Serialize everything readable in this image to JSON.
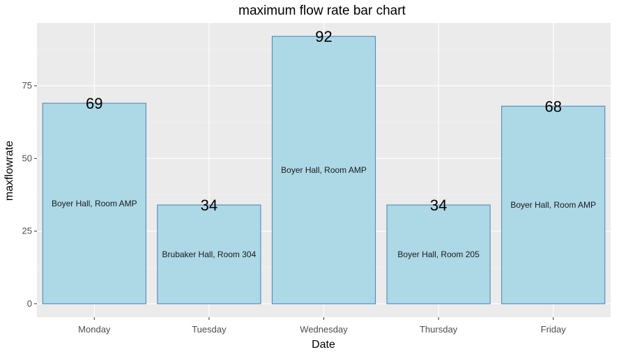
{
  "chart_data": {
    "type": "bar",
    "title": "maximum flow rate bar chart",
    "xlabel": "Date",
    "ylabel": "maxflowrate",
    "categories": [
      "Monday",
      "Tuesday",
      "Wednesday",
      "Thursday",
      "Friday"
    ],
    "values": [
      69,
      34,
      92,
      34,
      68
    ],
    "annotations": [
      "Boyer Hall, Room AMP",
      "Brubaker Hall, Room 304",
      "Boyer Hall, Room AMP",
      "Boyer Hall, Room 205",
      "Boyer Hall, Room AMP"
    ],
    "yticks": [
      0,
      25,
      50,
      75
    ],
    "ylim": [
      -4.6,
      96.6
    ],
    "grid": true,
    "colors": {
      "panel": "#ebebeb",
      "grid_major": "#ffffff",
      "grid_minor": "#f5f5f5",
      "bar_fill": "#add8e6",
      "bar_stroke": "#4682b4"
    }
  }
}
